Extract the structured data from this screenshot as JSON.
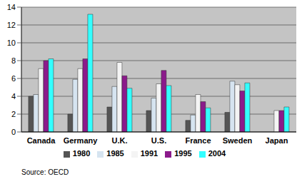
{
  "chart_data": {
    "type": "bar",
    "categories": [
      "Canada",
      "Germany",
      "U.K.",
      "U.S.",
      "France",
      "Sweden",
      "Japan"
    ],
    "series": [
      {
        "name": "1980",
        "color": "#555555",
        "values": [
          4.0,
          2.0,
          2.8,
          2.4,
          1.3,
          2.2,
          null
        ]
      },
      {
        "name": "1985",
        "color": "#d6e4f0",
        "values": [
          4.2,
          5.9,
          5.1,
          3.8,
          1.9,
          5.7,
          null
        ]
      },
      {
        "name": "1991",
        "color": "#f4f4f4",
        "values": [
          7.1,
          7.1,
          7.8,
          5.4,
          4.2,
          5.3,
          2.4
        ]
      },
      {
        "name": "1995",
        "color": "#8b1a8b",
        "values": [
          8.0,
          8.2,
          6.3,
          6.9,
          3.4,
          4.6,
          2.4
        ]
      },
      {
        "name": "2004",
        "color": "#33ffff",
        "values": [
          8.2,
          13.2,
          4.9,
          5.2,
          2.7,
          5.5,
          2.8
        ]
      }
    ],
    "ylim": [
      0,
      14
    ],
    "yticks": [
      0,
      2,
      4,
      6,
      8,
      10,
      12,
      14
    ],
    "grid": true,
    "legend": "bottom",
    "annotations": [
      "Source: OECD"
    ]
  }
}
